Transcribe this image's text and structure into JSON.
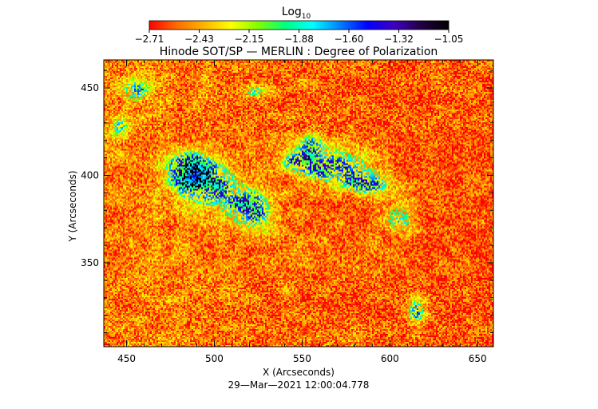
{
  "chart_data": {
    "type": "heatmap",
    "title": "Hinode SOT/SP — MERLIN : Degree of Polarization",
    "xlabel": "X (Arcseconds)",
    "ylabel": "Y (Arcseconds)",
    "xlim": [
      437,
      659
    ],
    "ylim": [
      302,
      466
    ],
    "xticks": [
      450,
      500,
      550,
      600,
      650
    ],
    "yticks": [
      350,
      400,
      450
    ],
    "timestamp": "29—Mar—2021 12:00:04.778",
    "colorbar": {
      "label_base": "Log",
      "label_sub": "10",
      "range": [
        -2.71,
        -1.05
      ],
      "ticks": [
        "−2.71",
        "−2.43",
        "−2.15",
        "−1.88",
        "−1.60",
        "−1.32",
        "−1.05"
      ],
      "colormap": [
        "#ff0000",
        "#ff6a00",
        "#ffb400",
        "#ffff00",
        "#80ff00",
        "#00ff80",
        "#00ffff",
        "#0080ff",
        "#0000ff",
        "#4000c0",
        "#200040",
        "#000000"
      ]
    },
    "background_level": -2.5,
    "active_regions": [
      {
        "x": 495,
        "y": 395,
        "sx": 14,
        "sy": 9,
        "amp": 0.55
      },
      {
        "x": 520,
        "y": 380,
        "sx": 10,
        "sy": 8,
        "amp": 0.5
      },
      {
        "x": 485,
        "y": 405,
        "sx": 8,
        "sy": 6,
        "amp": 0.5
      },
      {
        "x": 568,
        "y": 405,
        "sx": 14,
        "sy": 7,
        "amp": 0.55
      },
      {
        "x": 548,
        "y": 408,
        "sx": 6,
        "sy": 4,
        "amp": 0.45
      },
      {
        "x": 588,
        "y": 395,
        "sx": 9,
        "sy": 5,
        "amp": 0.45
      },
      {
        "x": 605,
        "y": 375,
        "sx": 6,
        "sy": 7,
        "amp": 0.4
      },
      {
        "x": 455,
        "y": 448,
        "sx": 6,
        "sy": 5,
        "amp": 0.45
      },
      {
        "x": 446,
        "y": 428,
        "sx": 4,
        "sy": 5,
        "amp": 0.35
      },
      {
        "x": 523,
        "y": 448,
        "sx": 5,
        "sy": 3,
        "amp": 0.35
      },
      {
        "x": 615,
        "y": 322,
        "sx": 4,
        "sy": 5,
        "amp": 0.45
      },
      {
        "x": 555,
        "y": 418,
        "sx": 6,
        "sy": 4,
        "amp": 0.35
      }
    ]
  }
}
